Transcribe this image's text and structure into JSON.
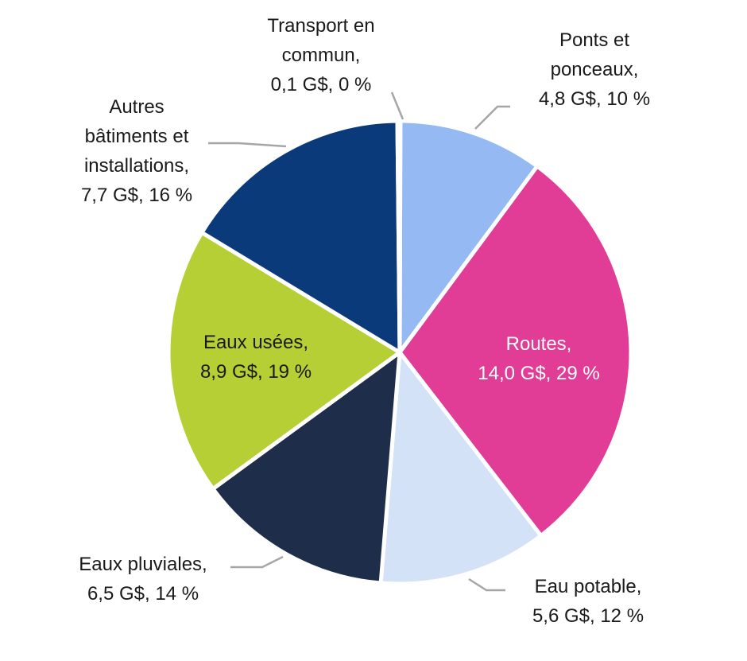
{
  "chart_data": {
    "type": "pie",
    "slices": [
      {
        "name": "Ponts et ponceaux",
        "value": 4.8,
        "percent": 10,
        "color": "#94b9f3",
        "label_lines": [
          "Ponts et",
          "ponceaux,",
          "4,8 G$, 10 %"
        ]
      },
      {
        "name": "Routes",
        "value": 14.0,
        "percent": 29,
        "color": "#e23d96",
        "label_lines": [
          "Routes,",
          "14,0 G$, 29 %"
        ]
      },
      {
        "name": "Eau potable",
        "value": 5.6,
        "percent": 12,
        "color": "#d4e2f8",
        "label_lines": [
          "Eau potable,",
          "5,6 G$, 12 %"
        ]
      },
      {
        "name": "Eaux pluviales",
        "value": 6.5,
        "percent": 14,
        "color": "#1e2d4a",
        "label_lines": [
          "Eaux pluviales,",
          "6,5 G$, 14 %"
        ]
      },
      {
        "name": "Eaux usées",
        "value": 8.9,
        "percent": 19,
        "color": "#b5cf35",
        "label_lines": [
          "Eaux usées,",
          "8,9 G$, 19 %"
        ]
      },
      {
        "name": "Autres bâtiments et installations",
        "value": 7.7,
        "percent": 16,
        "color": "#0b3a7b",
        "label_lines": [
          "Autres",
          "bâtiments et",
          "installations,",
          "7,7 G$, 16 %"
        ]
      },
      {
        "name": "Transport en commun",
        "value": 0.1,
        "percent": 0,
        "color": "#3a3a3a",
        "label_lines": [
          "Transport en",
          "commun,",
          "0,1 G$, 0 %"
        ]
      }
    ],
    "legend": "none"
  }
}
